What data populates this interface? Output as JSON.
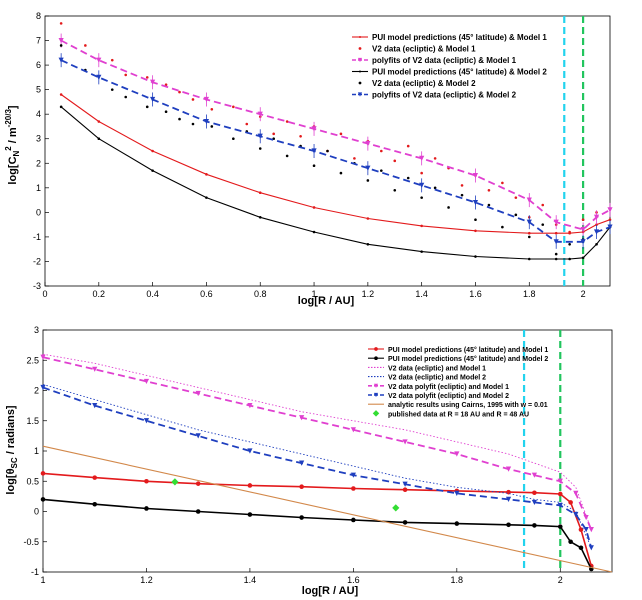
{
  "chart_data": [
    {
      "type": "line",
      "xlabel": "log[R / AU]",
      "ylabel": "log[C_N^2 / m^-20/3]",
      "ylabel_parts": {
        "main": "log[C",
        "sub": "N",
        "sup": "2",
        "tail": " / m",
        "tail_sup": "-20/3",
        "close": "]"
      },
      "xlim": [
        0,
        2.1
      ],
      "ylim": [
        -3,
        8
      ],
      "xticks": [
        0,
        0.2,
        0.4,
        0.6,
        0.8,
        1,
        1.2,
        1.4,
        1.6,
        1.8,
        2
      ],
      "xtick_labels": [
        "0",
        "0.2",
        "0.4",
        "0.6",
        "0.8",
        "1",
        "1.2",
        "1.4",
        "1.6",
        "1.8",
        "2"
      ],
      "yticks": [
        -3,
        -2,
        -1,
        0,
        1,
        2,
        3,
        4,
        5,
        6,
        7,
        8
      ],
      "ytick_labels": [
        "-3",
        "-2",
        "-1",
        "0",
        "1",
        "2",
        "3",
        "4",
        "5",
        "6",
        "7",
        "8"
      ],
      "vlines": [
        {
          "x": 1.93,
          "color": "#22d3ee"
        },
        {
          "x": 2.0,
          "color": "#22c55e"
        }
      ],
      "legend_position": "top-right",
      "series": [
        {
          "name": "PUI model predictions (45° latitude) & Model 1",
          "style": "model",
          "color": "#e31a1c",
          "x": [
            0.06,
            0.2,
            0.4,
            0.6,
            0.8,
            1.0,
            1.2,
            1.4,
            1.6,
            1.8,
            1.9,
            1.95,
            2.0,
            2.05,
            2.1
          ],
          "y": [
            4.8,
            3.7,
            2.5,
            1.55,
            0.8,
            0.2,
            -0.25,
            -0.55,
            -0.75,
            -0.85,
            -0.85,
            -0.85,
            -0.8,
            -0.5,
            -0.3
          ]
        },
        {
          "name": "V2 data (ecliptic) & Model 1",
          "style": "scatter",
          "color": "#e31a1c",
          "x": [
            0.06,
            0.15,
            0.25,
            0.3,
            0.38,
            0.45,
            0.5,
            0.55,
            0.62,
            0.7,
            0.75,
            0.8,
            0.85,
            0.9,
            0.95,
            1.0,
            1.05,
            1.1,
            1.15,
            1.2,
            1.25,
            1.3,
            1.35,
            1.4,
            1.45,
            1.5,
            1.55,
            1.6,
            1.65,
            1.7,
            1.75,
            1.8,
            1.85,
            1.9,
            1.95,
            2.0,
            2.05
          ],
          "y": [
            7.7,
            6.8,
            6.2,
            5.6,
            5.5,
            5.2,
            4.9,
            4.6,
            4.2,
            4.3,
            3.6,
            3.9,
            3.2,
            3.7,
            3.1,
            3.5,
            2.5,
            3.2,
            2.2,
            2.9,
            2.5,
            2.1,
            2.7,
            1.6,
            2.2,
            1.8,
            1.1,
            1.5,
            0.9,
            1.2,
            0.6,
            -0.2,
            0.3,
            -0.5,
            -0.8,
            -0.3,
            0.0
          ]
        },
        {
          "name": "polyfits of V2 data (ecliptic) & Model 1",
          "style": "fit",
          "color": "#e040d0",
          "x": [
            0.06,
            0.2,
            0.4,
            0.6,
            0.8,
            1.0,
            1.2,
            1.4,
            1.6,
            1.8,
            1.9,
            2.0,
            2.05,
            2.1
          ],
          "y": [
            7.0,
            6.2,
            5.3,
            4.6,
            4.0,
            3.4,
            2.8,
            2.2,
            1.5,
            0.5,
            -0.4,
            -0.7,
            -0.2,
            0.1
          ]
        },
        {
          "name": "PUI model predictions (45° latitude) & Model 2",
          "style": "model",
          "color": "#000000",
          "x": [
            0.06,
            0.2,
            0.4,
            0.6,
            0.8,
            1.0,
            1.2,
            1.4,
            1.6,
            1.8,
            1.9,
            1.95,
            2.0,
            2.05,
            2.1
          ],
          "y": [
            4.3,
            3.0,
            1.7,
            0.6,
            -0.2,
            -0.8,
            -1.3,
            -1.6,
            -1.8,
            -1.9,
            -1.9,
            -1.9,
            -1.85,
            -1.3,
            -0.6
          ]
        },
        {
          "name": "V2 data (ecliptic) & Model 2",
          "style": "scatter",
          "color": "#000000",
          "x": [
            0.06,
            0.15,
            0.25,
            0.3,
            0.38,
            0.45,
            0.5,
            0.55,
            0.62,
            0.7,
            0.75,
            0.8,
            0.85,
            0.9,
            0.95,
            1.0,
            1.05,
            1.1,
            1.15,
            1.2,
            1.25,
            1.3,
            1.35,
            1.4,
            1.45,
            1.5,
            1.55,
            1.6,
            1.65,
            1.7,
            1.75,
            1.8,
            1.85,
            1.9,
            1.95,
            2.0
          ],
          "y": [
            6.8,
            5.8,
            5.0,
            4.7,
            4.3,
            4.1,
            3.8,
            3.6,
            3.5,
            3.0,
            3.3,
            2.6,
            3.0,
            2.3,
            2.7,
            1.9,
            2.5,
            1.6,
            2.0,
            1.3,
            1.7,
            0.9,
            1.4,
            0.6,
            1.0,
            0.2,
            0.7,
            -0.3,
            0.3,
            -0.6,
            -0.1,
            -1.0,
            -0.5,
            -1.7,
            -1.3,
            -1.1
          ]
        },
        {
          "name": "polyfits of V2 data (ecliptic) & Model 2",
          "style": "fit",
          "color": "#1f3fbf",
          "x": [
            0.06,
            0.2,
            0.4,
            0.6,
            0.8,
            1.0,
            1.2,
            1.4,
            1.6,
            1.8,
            1.9,
            2.0,
            2.05,
            2.1
          ],
          "y": [
            6.2,
            5.5,
            4.6,
            3.7,
            3.1,
            2.5,
            1.8,
            1.1,
            0.4,
            -0.4,
            -1.2,
            -1.2,
            -0.8,
            -0.6
          ]
        }
      ]
    },
    {
      "type": "line",
      "xlabel": "log[R / AU]",
      "ylabel": "log[θ_SC / radians]",
      "ylabel_parts": {
        "main": "log[θ",
        "sub": "SC",
        "tail": " / radians]"
      },
      "xlim": [
        1,
        2.1
      ],
      "ylim": [
        -1,
        3
      ],
      "xticks": [
        1,
        1.2,
        1.4,
        1.6,
        1.8,
        2
      ],
      "xtick_labels": [
        "1",
        "1.2",
        "1.4",
        "1.6",
        "1.8",
        "2"
      ],
      "yticks": [
        -1,
        -0.5,
        0,
        0.5,
        1,
        1.5,
        2,
        2.5,
        3
      ],
      "ytick_labels": [
        "-1",
        "-0.5",
        "0",
        "0.5",
        "1",
        "1.5",
        "2",
        "2.5",
        "3"
      ],
      "vlines": [
        {
          "x": 1.93,
          "color": "#22d3ee"
        },
        {
          "x": 2.0,
          "color": "#22c55e"
        }
      ],
      "legend_position": "top-right",
      "series": [
        {
          "name": "PUI model predictions (45° latitude) and Model 1",
          "style": "model2",
          "color": "#e31a1c",
          "x": [
            1.0,
            1.1,
            1.2,
            1.3,
            1.4,
            1.5,
            1.6,
            1.7,
            1.8,
            1.9,
            1.95,
            2.0,
            2.02,
            2.04,
            2.06
          ],
          "y": [
            0.63,
            0.56,
            0.5,
            0.46,
            0.43,
            0.41,
            0.38,
            0.36,
            0.34,
            0.32,
            0.31,
            0.29,
            0.15,
            -0.3,
            -0.9
          ]
        },
        {
          "name": "PUI model predictions (45° latitude) and Model 2",
          "style": "model2",
          "color": "#000000",
          "x": [
            1.0,
            1.1,
            1.2,
            1.3,
            1.4,
            1.5,
            1.6,
            1.7,
            1.8,
            1.9,
            1.95,
            2.0,
            2.02,
            2.04,
            2.06
          ],
          "y": [
            0.2,
            0.12,
            0.05,
            0.0,
            -0.05,
            -0.1,
            -0.14,
            -0.18,
            -0.2,
            -0.22,
            -0.23,
            -0.25,
            -0.5,
            -0.6,
            -0.95
          ]
        },
        {
          "name": "V2 data (ecliptic) and Model 1",
          "style": "dotted",
          "color": "#e040d0",
          "x": [
            1.0,
            1.1,
            1.2,
            1.3,
            1.4,
            1.5,
            1.6,
            1.7,
            1.8,
            1.9,
            1.95,
            2.0,
            2.03,
            2.06
          ],
          "y": [
            2.6,
            2.45,
            2.25,
            2.05,
            1.85,
            1.65,
            1.5,
            1.35,
            1.15,
            0.95,
            0.8,
            0.65,
            0.4,
            -0.3
          ]
        },
        {
          "name": "V2 data (ecliptic) and Model 2",
          "style": "dotted",
          "color": "#1f3fbf",
          "x": [
            1.0,
            1.1,
            1.2,
            1.3,
            1.4,
            1.5,
            1.6,
            1.7,
            1.8,
            1.9,
            1.95,
            2.0,
            2.03,
            2.06
          ],
          "y": [
            2.1,
            1.85,
            1.6,
            1.35,
            1.15,
            0.95,
            0.75,
            0.55,
            0.4,
            0.3,
            0.2,
            0.15,
            0.0,
            -0.6
          ]
        },
        {
          "name": "V2 data polyfit (ecliptic) and Model 1",
          "style": "fit2",
          "color": "#e040d0",
          "x": [
            1.0,
            1.1,
            1.2,
            1.3,
            1.4,
            1.5,
            1.6,
            1.7,
            1.8,
            1.9,
            1.95,
            2.0,
            2.03,
            2.05,
            2.06
          ],
          "y": [
            2.55,
            2.35,
            2.15,
            1.95,
            1.75,
            1.55,
            1.35,
            1.15,
            0.95,
            0.7,
            0.6,
            0.5,
            0.3,
            -0.1,
            -0.3
          ]
        },
        {
          "name": "V2 data polyfit (ecliptic) and Model 2",
          "style": "fit2",
          "color": "#1f3fbf",
          "x": [
            1.0,
            1.1,
            1.2,
            1.3,
            1.4,
            1.5,
            1.6,
            1.7,
            1.8,
            1.9,
            1.95,
            2.0,
            2.03,
            2.05,
            2.06
          ],
          "y": [
            2.05,
            1.75,
            1.5,
            1.25,
            1.0,
            0.8,
            0.6,
            0.45,
            0.3,
            0.2,
            0.15,
            0.1,
            -0.05,
            -0.3,
            -0.6
          ]
        },
        {
          "name": "analytic results using Cairns, 1995 with w = 0.01",
          "style": "plain",
          "color": "#d2884a",
          "x": [
            1.0,
            2.1
          ],
          "y": [
            1.08,
            -1.0
          ]
        },
        {
          "name": "published data at R = 18 AU and R = 48 AU",
          "style": "diamond",
          "color": "#33dd33",
          "x": [
            1.255,
            1.682
          ],
          "y": [
            0.49,
            0.06
          ]
        }
      ]
    }
  ]
}
